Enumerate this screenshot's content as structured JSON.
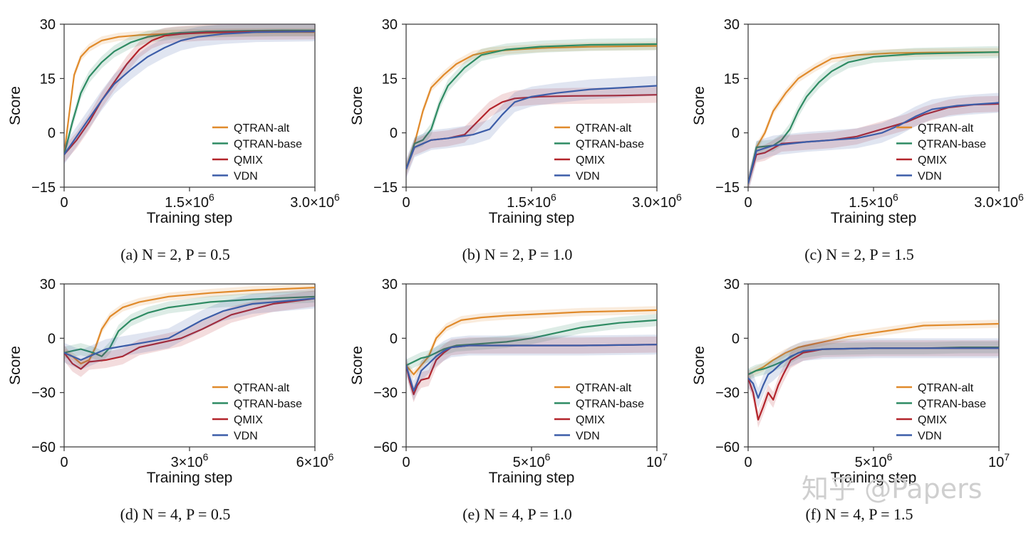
{
  "chart_data": [
    {
      "type": "line",
      "caption": "(a) N = 2, P = 0.5",
      "xlabel": "Training step",
      "ylabel": "Score",
      "xlim": [
        0,
        3000000
      ],
      "ylim": [
        -15,
        30
      ],
      "xticks": [
        {
          "v": 0,
          "label": "0"
        },
        {
          "v": 1500000,
          "label": "1.5×10",
          "sup": "6"
        },
        {
          "v": 3000000,
          "label": "3.0×10",
          "sup": "6"
        }
      ],
      "yticks": [
        {
          "v": 30,
          "label": "30"
        },
        {
          "v": 15,
          "label": "15"
        },
        {
          "v": 0,
          "label": "0"
        },
        {
          "v": -15,
          "label": "−15"
        }
      ],
      "series": [
        {
          "name": "QTRAN-alt",
          "color": "#e08a2b",
          "x": [
            0,
            60000,
            120000,
            200000,
            300000,
            450000,
            650000,
            900000,
            1200000,
            1600000,
            2000000,
            2500000,
            3000000
          ],
          "values": [
            -6,
            5,
            16,
            21,
            23.5,
            25.5,
            26.5,
            27,
            27.3,
            27.5,
            27.7,
            27.8,
            27.8
          ]
        },
        {
          "name": "QTRAN-base",
          "color": "#2e8b63",
          "x": [
            0,
            100000,
            200000,
            300000,
            450000,
            600000,
            800000,
            1000000,
            1300000,
            1700000,
            2200000,
            2600000,
            3000000
          ],
          "values": [
            -6,
            3,
            11,
            15.5,
            19.5,
            22.5,
            25,
            26.5,
            27.5,
            28,
            28.2,
            28.3,
            28.3
          ]
        },
        {
          "name": "QMIX",
          "color": "#b3242b",
          "x": [
            0,
            150000,
            300000,
            450000,
            600000,
            750000,
            900000,
            1050000,
            1200000,
            1400000,
            1700000,
            2200000,
            3000000
          ],
          "values": [
            -6,
            -2,
            3,
            9,
            14,
            19,
            23,
            25.5,
            26.8,
            27.3,
            27.7,
            27.9,
            28
          ]
        },
        {
          "name": "VDN",
          "color": "#3c5da8",
          "x": [
            0,
            150000,
            300000,
            450000,
            600000,
            800000,
            1000000,
            1200000,
            1400000,
            1600000,
            1900000,
            2300000,
            3000000
          ],
          "values": [
            -6,
            -1,
            4,
            9,
            13.5,
            17.5,
            21,
            23.5,
            25.5,
            26.5,
            27.3,
            27.8,
            28
          ]
        }
      ]
    },
    {
      "type": "line",
      "caption": "(b) N = 2, P = 1.0",
      "xlabel": "Training step",
      "ylabel": "Score",
      "xlim": [
        0,
        3000000
      ],
      "ylim": [
        -15,
        30
      ],
      "xticks": [
        {
          "v": 0,
          "label": "0"
        },
        {
          "v": 1500000,
          "label": "1.5×10",
          "sup": "6"
        },
        {
          "v": 3000000,
          "label": "3.0×10",
          "sup": "6"
        }
      ],
      "yticks": [
        {
          "v": 30,
          "label": "30"
        },
        {
          "v": 15,
          "label": "15"
        },
        {
          "v": 0,
          "label": "0"
        },
        {
          "v": -15,
          "label": "−15"
        }
      ],
      "series": [
        {
          "name": "QTRAN-alt",
          "color": "#e08a2b",
          "x": [
            0,
            100000,
            200000,
            300000,
            450000,
            600000,
            800000,
            1000000,
            1300000,
            1700000,
            2200000,
            3000000
          ],
          "values": [
            -10,
            -3,
            6,
            12.5,
            16,
            19,
            21.5,
            22.5,
            23,
            23.5,
            23.8,
            24
          ]
        },
        {
          "name": "QTRAN-base",
          "color": "#2e8b63",
          "x": [
            0,
            100000,
            200000,
            300000,
            400000,
            500000,
            700000,
            900000,
            1200000,
            1600000,
            2200000,
            3000000
          ],
          "values": [
            -10,
            -3,
            -2,
            1,
            8,
            13,
            18,
            21.5,
            23,
            23.8,
            24.3,
            24.5
          ]
        },
        {
          "name": "QMIX",
          "color": "#b3242b",
          "x": [
            0,
            100000,
            300000,
            500000,
            700000,
            850000,
            1000000,
            1150000,
            1300000,
            1600000,
            2000000,
            2500000,
            3000000
          ],
          "values": [
            -10,
            -4,
            -2,
            -1.5,
            -0.5,
            3,
            6.5,
            8.5,
            9.5,
            10,
            10.2,
            10.3,
            10.5
          ]
        },
        {
          "name": "VDN",
          "color": "#3c5da8",
          "x": [
            0,
            100000,
            300000,
            500000,
            800000,
            1000000,
            1150000,
            1300000,
            1500000,
            1800000,
            2200000,
            2600000,
            3000000
          ],
          "values": [
            -10,
            -4,
            -2,
            -1.5,
            -0.5,
            1,
            5,
            8.5,
            10,
            11,
            12,
            12.5,
            13
          ]
        }
      ]
    },
    {
      "type": "line",
      "caption": "(c) N = 2, P = 1.5",
      "xlabel": "Training step",
      "ylabel": "Score",
      "xlim": [
        0,
        3000000
      ],
      "ylim": [
        -15,
        30
      ],
      "xticks": [
        {
          "v": 0,
          "label": "0"
        },
        {
          "v": 1500000,
          "label": "1.5×10",
          "sup": "6"
        },
        {
          "v": 3000000,
          "label": "3.0×10",
          "sup": "6"
        }
      ],
      "yticks": [
        {
          "v": 30,
          "label": "30"
        },
        {
          "v": 15,
          "label": "15"
        },
        {
          "v": 0,
          "label": "0"
        },
        {
          "v": -15,
          "label": "−15"
        }
      ],
      "series": [
        {
          "name": "QTRAN-alt",
          "color": "#e08a2b",
          "x": [
            0,
            100000,
            200000,
            300000,
            450000,
            600000,
            800000,
            1000000,
            1300000,
            1700000,
            2200000,
            3000000
          ],
          "values": [
            -14,
            -4,
            0,
            6,
            11,
            15,
            18,
            20.5,
            21.5,
            22,
            22.2,
            22.3
          ]
        },
        {
          "name": "QTRAN-base",
          "color": "#2e8b63",
          "x": [
            0,
            100000,
            300000,
            400000,
            500000,
            600000,
            700000,
            850000,
            1000000,
            1200000,
            1500000,
            2000000,
            3000000
          ],
          "values": [
            -14,
            -4,
            -3.5,
            -2,
            1,
            6,
            10,
            14,
            17,
            19.5,
            21,
            21.8,
            22.3
          ]
        },
        {
          "name": "QMIX",
          "color": "#b3242b",
          "x": [
            0,
            100000,
            200000,
            400000,
            700000,
            1000000,
            1300000,
            1600000,
            1900000,
            2100000,
            2400000,
            2700000,
            3000000
          ],
          "values": [
            -14,
            -6,
            -5.5,
            -3,
            -2.5,
            -2,
            -1,
            1,
            3,
            5,
            7,
            7.8,
            8
          ]
        },
        {
          "name": "VDN",
          "color": "#3c5da8",
          "x": [
            0,
            100000,
            300000,
            700000,
            1000000,
            1300000,
            1600000,
            1800000,
            2000000,
            2200000,
            2500000,
            2800000,
            3000000
          ],
          "values": [
            -14,
            -5,
            -3.5,
            -2.5,
            -2,
            -1.5,
            0,
            2,
            4.5,
            6.5,
            7.5,
            8,
            8.3
          ]
        }
      ]
    },
    {
      "type": "line",
      "caption": "(d) N = 4, P = 0.5",
      "xlabel": "Training step",
      "ylabel": "Score",
      "xlim": [
        0,
        6000000
      ],
      "ylim": [
        -60,
        30
      ],
      "xticks": [
        {
          "v": 0,
          "label": "0"
        },
        {
          "v": 3000000,
          "label": "3×10",
          "sup": "6"
        },
        {
          "v": 6000000,
          "label": "6×10",
          "sup": "6"
        }
      ],
      "yticks": [
        {
          "v": 30,
          "label": "30"
        },
        {
          "v": 0,
          "label": "0"
        },
        {
          "v": -30,
          "label": "−30"
        },
        {
          "v": -60,
          "label": "−60"
        }
      ],
      "series": [
        {
          "name": "QTRAN-alt",
          "color": "#e08a2b",
          "x": [
            0,
            200000,
            400000,
            600000,
            750000,
            900000,
            1100000,
            1400000,
            1800000,
            2500000,
            3500000,
            4500000,
            6000000
          ],
          "values": [
            -8,
            -10,
            -14,
            -12,
            -5,
            5,
            12,
            17,
            20,
            23,
            25,
            26.5,
            28
          ]
        },
        {
          "name": "QTRAN-base",
          "color": "#2e8b63",
          "x": [
            0,
            200000,
            400000,
            700000,
            900000,
            1100000,
            1300000,
            1600000,
            2000000,
            2500000,
            3500000,
            4500000,
            6000000
          ],
          "values": [
            -8,
            -7,
            -6,
            -8,
            -10,
            -5,
            4,
            10,
            14,
            17,
            20,
            21.5,
            23
          ]
        },
        {
          "name": "QMIX",
          "color": "#b3242b",
          "x": [
            0,
            200000,
            400000,
            600000,
            1000000,
            1400000,
            1800000,
            2200000,
            2800000,
            3300000,
            4000000,
            5000000,
            6000000
          ],
          "values": [
            -8,
            -14,
            -17,
            -13,
            -12,
            -10,
            -5,
            -3,
            0,
            5,
            13,
            19,
            22
          ]
        },
        {
          "name": "VDN",
          "color": "#3c5da8",
          "x": [
            0,
            200000,
            400000,
            700000,
            1000000,
            1500000,
            2000000,
            2500000,
            2900000,
            3300000,
            3800000,
            4500000,
            6000000
          ],
          "values": [
            -8,
            -10,
            -12,
            -9,
            -6,
            -4,
            -2,
            0,
            5,
            10,
            15,
            19,
            22
          ]
        }
      ]
    },
    {
      "type": "line",
      "caption": "(e) N = 4, P = 1.0",
      "xlabel": "Training step",
      "ylabel": "Score",
      "xlim": [
        0,
        10000000
      ],
      "ylim": [
        -60,
        30
      ],
      "xticks": [
        {
          "v": 0,
          "label": "0"
        },
        {
          "v": 5000000,
          "label": "5×10",
          "sup": "6"
        },
        {
          "v": 10000000,
          "label": "10",
          "sup": "7"
        }
      ],
      "yticks": [
        {
          "v": 30,
          "label": "30"
        },
        {
          "v": 0,
          "label": "0"
        },
        {
          "v": -30,
          "label": "−30"
        },
        {
          "v": -60,
          "label": "−60"
        }
      ],
      "series": [
        {
          "name": "QTRAN-alt",
          "color": "#e08a2b",
          "x": [
            0,
            300000,
            600000,
            900000,
            1200000,
            1600000,
            2200000,
            3000000,
            4000000,
            5500000,
            7000000,
            8500000,
            10000000
          ],
          "values": [
            -15,
            -20,
            -15,
            -10,
            0,
            6,
            10,
            11.5,
            12.5,
            13.5,
            14.5,
            15,
            15.5
          ]
        },
        {
          "name": "QTRAN-base",
          "color": "#2e8b63",
          "x": [
            0,
            300000,
            600000,
            900000,
            1500000,
            2000000,
            3000000,
            4000000,
            5000000,
            6000000,
            7000000,
            8500000,
            10000000
          ],
          "values": [
            -15,
            -13,
            -11,
            -10,
            -6,
            -4,
            -3,
            -2,
            0,
            3,
            6,
            8.5,
            10
          ]
        },
        {
          "name": "QMIX",
          "color": "#b3242b",
          "x": [
            0,
            150000,
            300000,
            450000,
            600000,
            900000,
            1200000,
            1500000,
            1800000,
            2500000,
            4000000,
            7000000,
            10000000
          ],
          "values": [
            -15,
            -24,
            -31,
            -26,
            -23,
            -22,
            -12,
            -8,
            -5,
            -4,
            -4,
            -4,
            -3.5
          ]
        },
        {
          "name": "VDN",
          "color": "#3c5da8",
          "x": [
            0,
            150000,
            300000,
            450000,
            600000,
            900000,
            1200000,
            1500000,
            1800000,
            2500000,
            4000000,
            7000000,
            10000000
          ],
          "values": [
            -15,
            -22,
            -29,
            -24,
            -18,
            -14,
            -10,
            -7,
            -5,
            -4,
            -4,
            -4,
            -3.5
          ]
        }
      ]
    },
    {
      "type": "line",
      "caption": "(f) N = 4, P = 1.5",
      "xlabel": "Training step",
      "ylabel": "Score",
      "xlim": [
        0,
        10000000
      ],
      "ylim": [
        -60,
        30
      ],
      "xticks": [
        {
          "v": 0,
          "label": "0"
        },
        {
          "v": 5000000,
          "label": "5×10",
          "sup": "6"
        },
        {
          "v": 10000000,
          "label": "10",
          "sup": "7"
        }
      ],
      "yticks": [
        {
          "v": 30,
          "label": "30"
        },
        {
          "v": 0,
          "label": "0"
        },
        {
          "v": -30,
          "label": "−30"
        },
        {
          "v": -60,
          "label": "−60"
        }
      ],
      "series": [
        {
          "name": "QTRAN-alt",
          "color": "#e08a2b",
          "x": [
            0,
            300000,
            600000,
            1000000,
            1500000,
            2000000,
            3000000,
            4000000,
            5000000,
            6000000,
            7000000,
            8500000,
            10000000
          ],
          "values": [
            -20,
            -18,
            -16,
            -12,
            -8,
            -5,
            -2,
            1,
            3,
            5,
            7,
            7.5,
            8
          ]
        },
        {
          "name": "QTRAN-base",
          "color": "#2e8b63",
          "x": [
            0,
            300000,
            600000,
            1000000,
            1500000,
            2000000,
            3000000,
            5000000,
            7000000,
            8500000,
            10000000
          ],
          "values": [
            -20,
            -18,
            -17,
            -15,
            -12,
            -8,
            -6,
            -5.5,
            -5.5,
            -5,
            -5
          ]
        },
        {
          "name": "QMIX",
          "color": "#b3242b",
          "x": [
            0,
            200000,
            400000,
            600000,
            800000,
            1000000,
            1200000,
            1400000,
            1700000,
            2200000,
            3000000,
            5000000,
            7000000,
            10000000
          ],
          "values": [
            -22,
            -30,
            -45,
            -38,
            -30,
            -34,
            -26,
            -20,
            -12,
            -8,
            -6,
            -5.5,
            -5.5,
            -5.5
          ]
        },
        {
          "name": "VDN",
          "color": "#3c5da8",
          "x": [
            0,
            200000,
            400000,
            600000,
            800000,
            1000000,
            1300000,
            1700000,
            2200000,
            3000000,
            5000000,
            7000000,
            10000000
          ],
          "values": [
            -22,
            -25,
            -33,
            -26,
            -20,
            -18,
            -14,
            -10,
            -7,
            -6,
            -5.5,
            -5.5,
            -5.5
          ]
        }
      ]
    }
  ],
  "watermark": "知乎 @Papers"
}
